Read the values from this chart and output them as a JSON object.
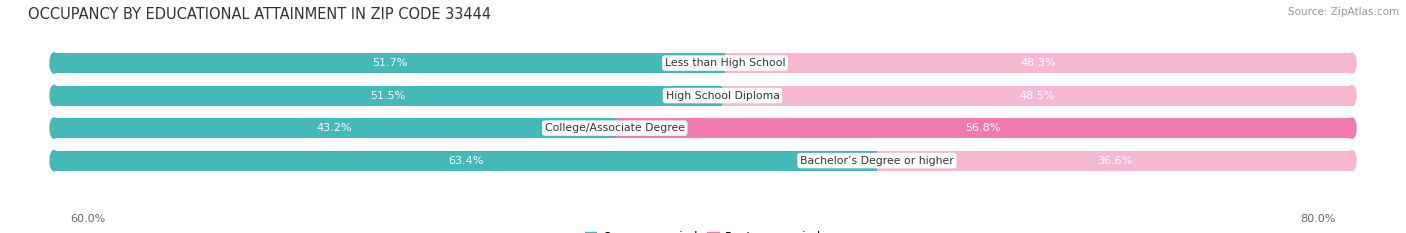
{
  "title": "OCCUPANCY BY EDUCATIONAL ATTAINMENT IN ZIP CODE 33444",
  "source": "Source: ZipAtlas.com",
  "categories": [
    "Less than High School",
    "High School Diploma",
    "College/Associate Degree",
    "Bachelor’s Degree or higher"
  ],
  "owner_pct": [
    51.7,
    51.5,
    43.2,
    63.4
  ],
  "renter_pct": [
    48.3,
    48.5,
    56.8,
    36.6
  ],
  "owner_color": "#45b8b8",
  "renter_color": "#f07aaa",
  "renter_color_light": "#f5b8d0",
  "bar_bg_color": "#e8e8e8",
  "x_left_label": "60.0%",
  "x_right_label": "80.0%",
  "background_color": "#ffffff",
  "title_fontsize": 10.5,
  "source_fontsize": 7.5,
  "bar_height": 0.62,
  "label_white_threshold": 8.0
}
